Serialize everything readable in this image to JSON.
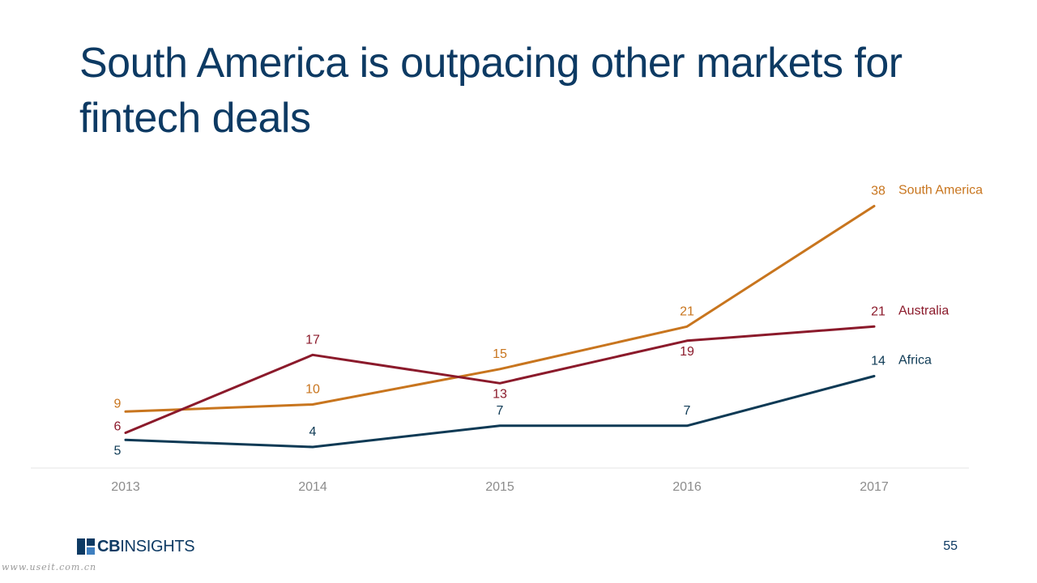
{
  "title": "South America is outpacing other markets for fintech deals",
  "footer": {
    "logo_cb": "CB",
    "logo_rest": "INSIGHTS",
    "page_number": "55",
    "watermark": "www.useit.com.cn"
  },
  "chart_data": {
    "type": "line",
    "x": [
      "2013",
      "2014",
      "2015",
      "2016",
      "2017"
    ],
    "ylim": [
      0,
      40
    ],
    "grid": false,
    "legend": "end-of-line labels",
    "series": [
      {
        "name": "South America",
        "color": "#c8751e",
        "values": [
          9,
          10,
          15,
          21,
          38
        ]
      },
      {
        "name": "Australia",
        "color": "#8b1a2b",
        "values": [
          6,
          17,
          13,
          19,
          21
        ]
      },
      {
        "name": "Africa",
        "color": "#0e3a55",
        "values": [
          5,
          4,
          7,
          7,
          14
        ]
      }
    ]
  }
}
